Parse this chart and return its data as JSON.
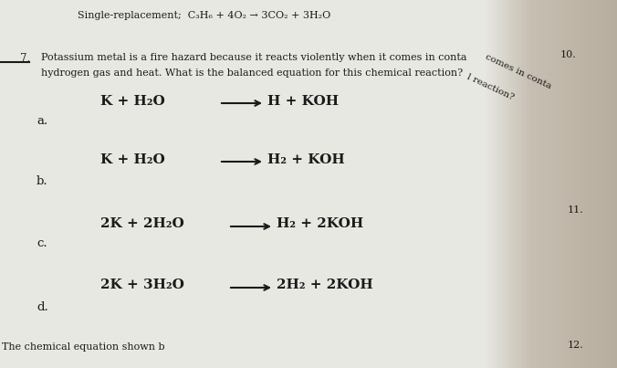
{
  "bg_color_left": "#e8e8e8",
  "bg_color_right": "#b0a898",
  "text_color": "#1a1a1a",
  "top_line1": "Single-replacement;  C₃H₆ + 4O₂ → 3CO₂ + 3H₂O",
  "question_num": "7.",
  "question_text1": "Potassium metal is a fire hazard because it reacts violently when it comes in conta",
  "question_text2": "hydrogen gas and heat. What is the balanced equation for this chemical reaction?",
  "option_a_label": "a.",
  "option_a_eq_left": "K + H₂O",
  "option_a_eq_right": "H + KOH",
  "option_b_label": "b.",
  "option_b_eq_left": "K + H₂O",
  "option_b_eq_right": "H₂ + KOH",
  "option_c_label": "c.",
  "option_c_eq_left": "2K + 2H₂O",
  "option_c_eq_right": "H₂ + 2KOH",
  "option_d_label": "d.",
  "option_d_eq_left": "2K + 3H₂O",
  "option_d_eq_right": "2H₂ + 2KOH",
  "footer": "The chemical equation shown b",
  "side_num_10": "10.",
  "side_num_11": "11.",
  "side_num_12": "12.",
  "curved_text1": "comes in conta",
  "curved_text2": "l reaction?",
  "arrow_text": "—→"
}
